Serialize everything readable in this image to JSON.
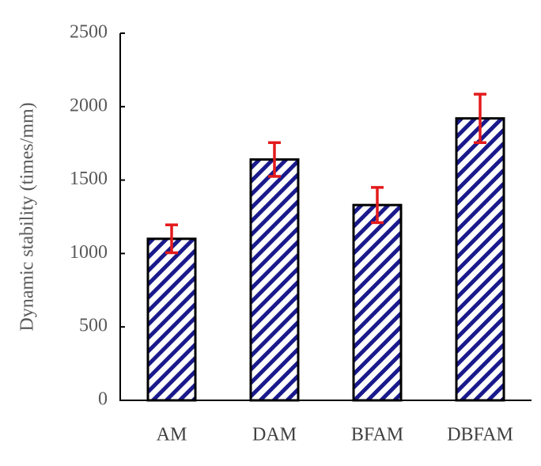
{
  "chart_data": {
    "type": "bar",
    "y_label": "Dynamic stability (times/mm)",
    "categories": [
      "AM",
      "DAM",
      "BFAM",
      "DBFAM"
    ],
    "values": [
      1100,
      1640,
      1330,
      1920
    ],
    "errors": [
      95,
      115,
      120,
      165
    ],
    "color": "#1a1a8c",
    "error_color": "#e31a1c",
    "ylim": [
      0,
      2500
    ],
    "yticks": [
      0,
      500,
      1000,
      1500,
      2000,
      2500
    ],
    "grid": false
  }
}
